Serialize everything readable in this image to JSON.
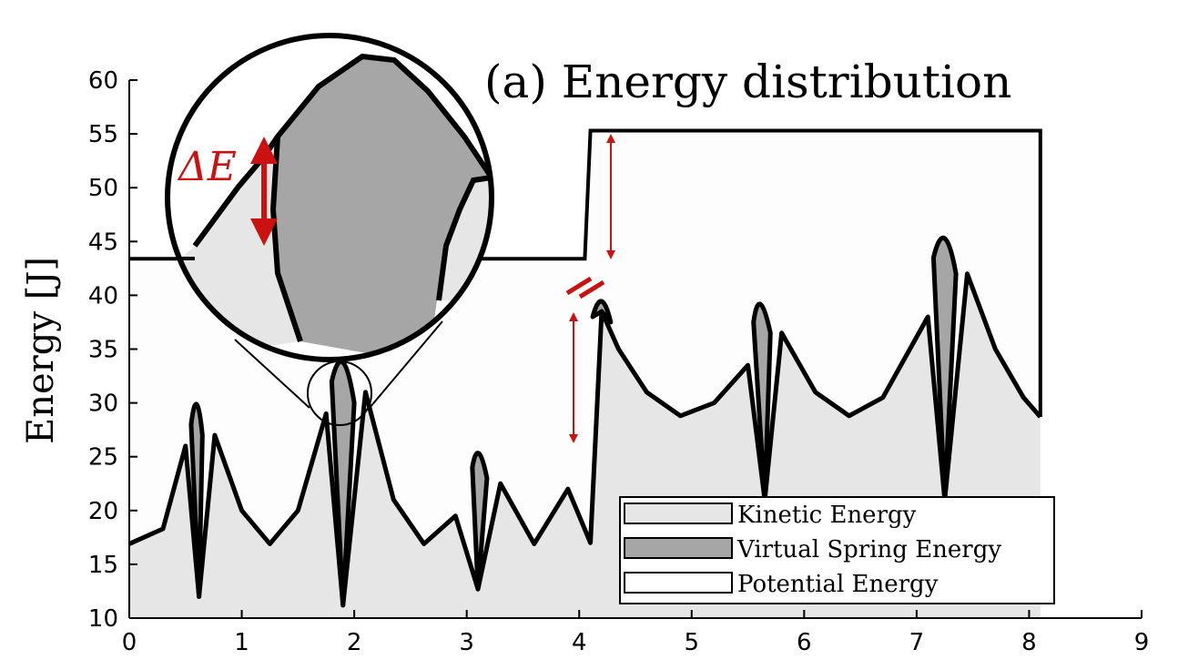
{
  "chart_data": {
    "type": "area",
    "title": "(a) Energy distribution",
    "xlabel": "",
    "ylabel": "Energy [J]",
    "xlim": [
      0,
      9
    ],
    "ylim": [
      10,
      60
    ],
    "xticks": [
      0,
      1,
      2,
      3,
      4,
      5,
      6,
      7,
      8,
      9
    ],
    "yticks": [
      10,
      15,
      20,
      25,
      30,
      35,
      40,
      45,
      50,
      55,
      60
    ],
    "grid": false,
    "legend_position": "lower-right",
    "legend": [
      "Kinetic Energy",
      "Virtual Spring Energy",
      "Potential Energy"
    ],
    "annotation": "ΔE",
    "colors": {
      "kinetic": "#e6e6e6",
      "spring": "#a6a6a6",
      "potential": "#ffffff",
      "line": "#000000",
      "annotation": "#cc1111"
    },
    "series": [
      {
        "name": "Kinetic Energy",
        "x": [
          0,
          0.3,
          0.5,
          0.62,
          0.76,
          1.0,
          1.25,
          1.5,
          1.75,
          1.9,
          2.1,
          2.35,
          2.62,
          2.9,
          3.1,
          3.3,
          3.6,
          3.9,
          4.1,
          4.2,
          4.35,
          4.6,
          4.9,
          5.2,
          5.5,
          5.65,
          5.8,
          6.1,
          6.4,
          6.7,
          7.1,
          7.25,
          7.45,
          7.7,
          7.95,
          8.1
        ],
        "values": [
          16.9,
          18.3,
          26.0,
          12.0,
          27.0,
          20.0,
          16.9,
          20.0,
          29.0,
          11.2,
          31.0,
          21.0,
          16.9,
          19.5,
          12.7,
          22.5,
          16.9,
          22.0,
          17.0,
          38.5,
          35.0,
          31.0,
          28.8,
          30.0,
          33.5,
          21.0,
          36.5,
          31.0,
          28.8,
          30.5,
          38.0,
          21.0,
          42.0,
          35.0,
          30.5,
          28.7
        ]
      },
      {
        "name": "Virtual Spring Energy",
        "x": [
          0.55,
          0.6,
          0.65,
          1.8,
          1.9,
          2.0,
          3.05,
          3.1,
          3.18,
          4.12,
          4.2,
          4.28,
          5.55,
          5.6,
          5.7,
          7.15,
          7.25,
          7.35
        ],
        "values": [
          28.0,
          30.7,
          27.0,
          32.0,
          35.0,
          30.0,
          24.0,
          25.6,
          23.0,
          38.0,
          39.6,
          37.5,
          37.5,
          39.8,
          36.5,
          43.5,
          46.3,
          42.0
        ]
      },
      {
        "name": "Potential Energy",
        "x": [
          0,
          4.05,
          4.1,
          8.1
        ],
        "values": [
          43.4,
          43.4,
          55.3,
          55.3
        ]
      }
    ]
  }
}
